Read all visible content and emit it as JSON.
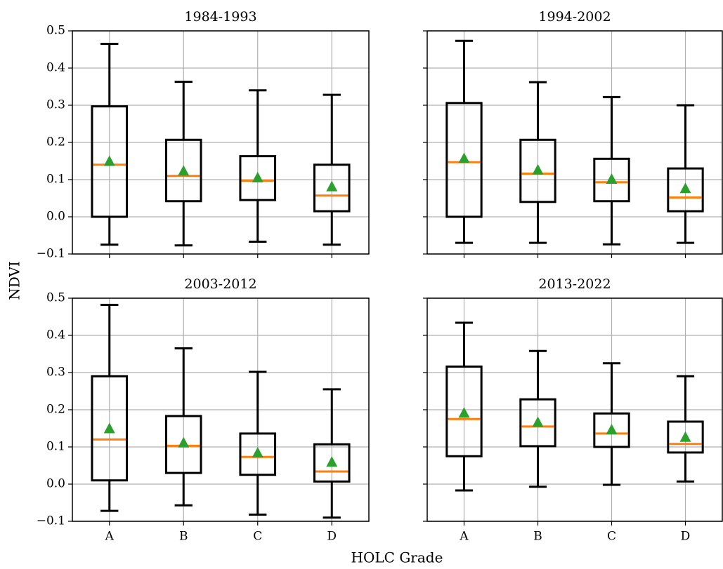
{
  "ylabel": "NDVI",
  "xlabel": "HOLC Grade",
  "chart_data": [
    {
      "type": "box",
      "title": "1984-1993",
      "categories": [
        "A",
        "B",
        "C",
        "D"
      ],
      "whislo": [
        -0.075,
        -0.077,
        -0.067,
        -0.075
      ],
      "q1": [
        0.0,
        0.042,
        0.045,
        0.015
      ],
      "med": [
        0.14,
        0.11,
        0.097,
        0.057
      ],
      "q3": [
        0.297,
        0.207,
        0.163,
        0.14
      ],
      "whishi": [
        0.465,
        0.363,
        0.34,
        0.328
      ],
      "mean": [
        0.148,
        0.122,
        0.104,
        0.08
      ],
      "median_color": "#ff7f0e",
      "mean_color": "#2ca02c",
      "grid": true,
      "show_xtick_labels": false,
      "show_ytick_labels": true,
      "ylim": [
        -0.1,
        0.5
      ],
      "yticks": [
        {
          "value": -0.1,
          "label": "−0.1"
        },
        {
          "value": 0,
          "label": "0.0"
        },
        0.1,
        0.2,
        0.3,
        0.4,
        0.5
      ]
    },
    {
      "type": "box",
      "title": "1994-2002",
      "categories": [
        "A",
        "B",
        "C",
        "D"
      ],
      "whislo": [
        -0.07,
        -0.07,
        -0.074,
        -0.07
      ],
      "q1": [
        0.0,
        0.04,
        0.042,
        0.015
      ],
      "med": [
        0.147,
        0.116,
        0.093,
        0.052
      ],
      "q3": [
        0.306,
        0.207,
        0.156,
        0.13
      ],
      "whishi": [
        0.473,
        0.362,
        0.322,
        0.3
      ],
      "mean": [
        0.156,
        0.125,
        0.1,
        0.075
      ],
      "median_color": "#ff7f0e",
      "mean_color": "#2ca02c",
      "grid": true,
      "show_xtick_labels": false,
      "show_ytick_labels": false,
      "ylim": [
        -0.1,
        0.5
      ],
      "yticks": [
        -0.1,
        0,
        0.1,
        0.2,
        0.3,
        0.4,
        0.5
      ]
    },
    {
      "type": "box",
      "title": "2003-2012",
      "categories": [
        "A",
        "B",
        "C",
        "D"
      ],
      "whislo": [
        -0.072,
        -0.057,
        -0.082,
        -0.09
      ],
      "q1": [
        0.01,
        0.03,
        0.025,
        0.007
      ],
      "med": [
        0.12,
        0.103,
        0.073,
        0.034
      ],
      "q3": [
        0.29,
        0.183,
        0.136,
        0.107
      ],
      "whishi": [
        0.482,
        0.365,
        0.302,
        0.255
      ],
      "mean": [
        0.148,
        0.11,
        0.083,
        0.058
      ],
      "median_color": "#ff7f0e",
      "mean_color": "#2ca02c",
      "grid": true,
      "show_xtick_labels": true,
      "show_ytick_labels": true,
      "ylim": [
        -0.1,
        0.5
      ],
      "yticks": [
        {
          "value": -0.1,
          "label": "−0.1"
        },
        {
          "value": 0,
          "label": "0.0"
        },
        0.1,
        0.2,
        0.3,
        0.4,
        0.5
      ]
    },
    {
      "type": "box",
      "title": "2013-2022",
      "categories": [
        "A",
        "B",
        "C",
        "D"
      ],
      "whislo": [
        -0.017,
        -0.007,
        -0.002,
        0.007
      ],
      "q1": [
        0.075,
        0.102,
        0.1,
        0.085
      ],
      "med": [
        0.175,
        0.155,
        0.136,
        0.108
      ],
      "q3": [
        0.316,
        0.228,
        0.19,
        0.168
      ],
      "whishi": [
        0.434,
        0.358,
        0.325,
        0.29
      ],
      "mean": [
        0.19,
        0.165,
        0.145,
        0.125
      ],
      "median_color": "#ff7f0e",
      "mean_color": "#2ca02c",
      "grid": true,
      "show_xtick_labels": true,
      "show_ytick_labels": false,
      "ylim": [
        -0.1,
        0.5
      ],
      "yticks": [
        -0.1,
        0,
        0.1,
        0.2,
        0.3,
        0.4,
        0.5
      ]
    }
  ]
}
